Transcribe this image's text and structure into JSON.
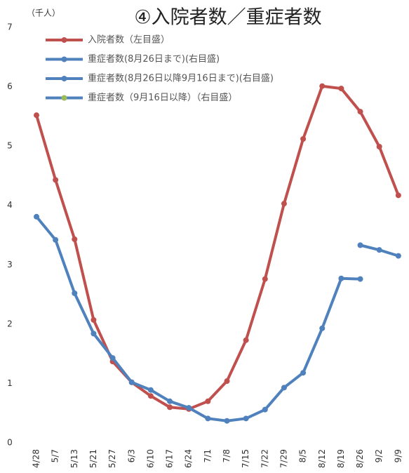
{
  "chart_data": {
    "type": "line",
    "title": "④入院者数／重症者数",
    "y_axis_label": "（千人）",
    "categories": [
      "4/28",
      "5/7",
      "5/13",
      "5/21",
      "5/27",
      "6/3",
      "6/10",
      "6/17",
      "6/24",
      "7/1",
      "7/8",
      "7/15",
      "7/22",
      "7/29",
      "8/5",
      "8/12",
      "8/19",
      "8/26",
      "9/2",
      "9/9"
    ],
    "ylim": [
      0,
      7
    ],
    "yticks": [
      0,
      1,
      2,
      3,
      4,
      5,
      6,
      7
    ],
    "grid": false,
    "legend": "top-left",
    "series": [
      {
        "name": "入院者数（左目盛）",
        "color": "#c0504d",
        "values": [
          5.52,
          4.43,
          3.43,
          2.07,
          1.37,
          1.02,
          0.79,
          0.6,
          0.57,
          0.7,
          1.04,
          1.73,
          2.76,
          4.03,
          5.12,
          6.01,
          5.97,
          5.58,
          4.99,
          4.17
        ]
      },
      {
        "name": "重症者数(8月26日まで)(右目盛)",
        "color": "#4f81bd",
        "values": [
          3.81,
          3.42,
          2.52,
          1.84,
          1.43,
          1.02,
          0.89,
          0.7,
          0.59,
          0.41,
          0.37,
          0.41,
          0.56,
          0.93,
          1.18,
          1.93,
          2.77,
          2.76,
          null,
          null
        ]
      },
      {
        "name": "重症者数(8月26日以降9月16日まで)(右目盛)",
        "color": "#4f81bd",
        "values": [
          null,
          null,
          null,
          null,
          null,
          null,
          null,
          null,
          null,
          null,
          null,
          null,
          null,
          null,
          null,
          null,
          null,
          3.33,
          3.25,
          3.15
        ]
      },
      {
        "name": "重症者数（9月16日以降）（右目盛）",
        "color": "#4f81bd",
        "marker_color": "#9bbb59",
        "values": [
          null,
          null,
          null,
          null,
          null,
          null,
          null,
          null,
          null,
          null,
          null,
          null,
          null,
          null,
          null,
          null,
          null,
          null,
          null,
          null
        ]
      }
    ]
  }
}
